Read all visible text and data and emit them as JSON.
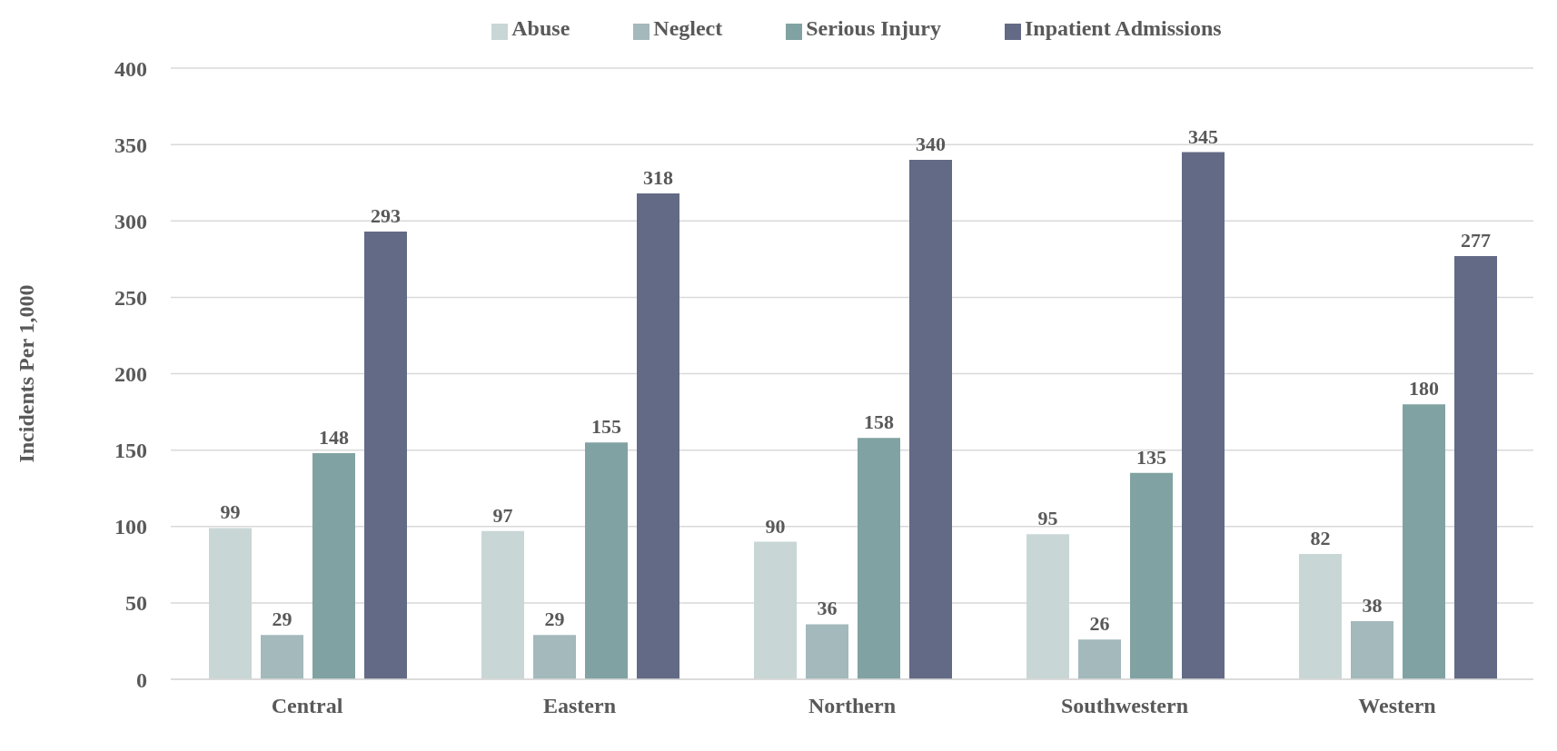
{
  "chart_data": {
    "type": "bar",
    "ylabel": "Incidents Per 1,000",
    "categories": [
      "Central",
      "Eastern",
      "Northern",
      "Southwestern",
      "Western"
    ],
    "series": [
      {
        "name": "Abuse",
        "color": "#c9d6d6",
        "values": [
          99,
          97,
          90,
          95,
          82
        ]
      },
      {
        "name": "Neglect",
        "color": "#a3b9bb",
        "values": [
          29,
          29,
          36,
          26,
          38
        ]
      },
      {
        "name": "Serious Injury",
        "color": "#81a2a2",
        "values": [
          148,
          155,
          158,
          135,
          180
        ]
      },
      {
        "name": "Inpatient Admissions",
        "color": "#636a86",
        "values": [
          293,
          318,
          340,
          345,
          277
        ]
      }
    ],
    "ylim": [
      0,
      400
    ],
    "yticks": [
      0,
      50,
      100,
      150,
      200,
      250,
      300,
      350,
      400
    ],
    "grid": "y",
    "legend": "top",
    "data_labels": true
  }
}
